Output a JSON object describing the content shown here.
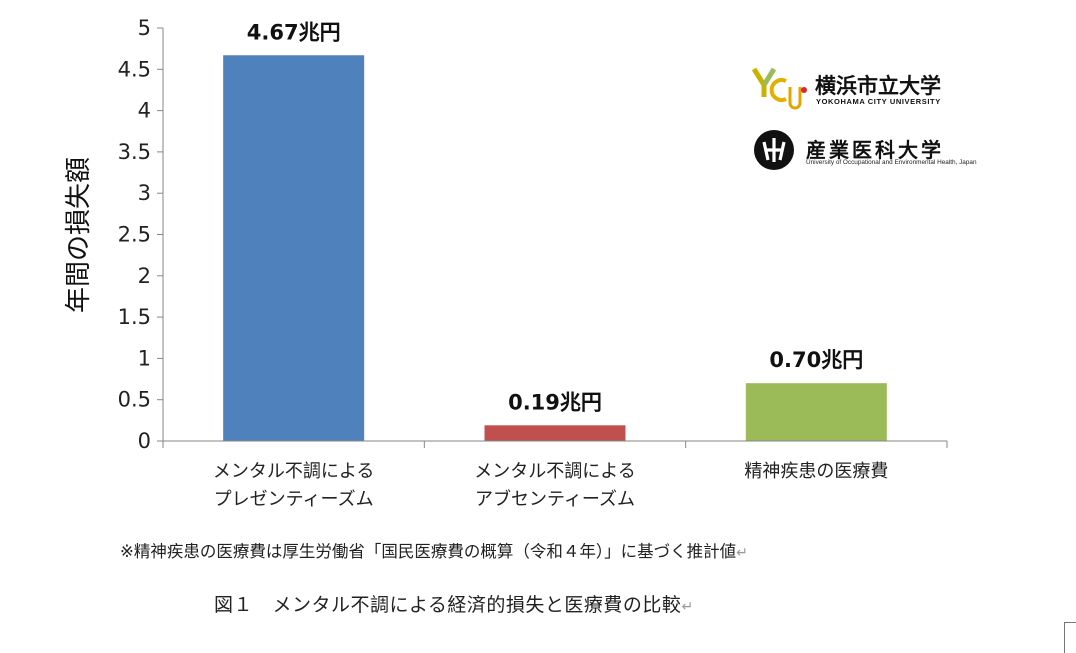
{
  "chart_data": {
    "type": "bar",
    "ylabel": "年間の損失額",
    "ylim": [
      0,
      5
    ],
    "yticks": [
      "0",
      "0.5",
      "1",
      "1.5",
      "2",
      "2.5",
      "3",
      "3.5",
      "4",
      "4.5",
      "5"
    ],
    "categories": [
      [
        "メンタル不調による",
        "プレゼンティーズム"
      ],
      [
        "メンタル不調による",
        "アブセンティーズム"
      ],
      [
        "精神疾患の医療費"
      ]
    ],
    "values": [
      4.67,
      0.19,
      0.7
    ],
    "data_labels": [
      "4.67兆円",
      "0.19兆円",
      "0.70兆円"
    ],
    "colors": [
      "#4f81bd",
      "#c0504d",
      "#9bbb59"
    ],
    "grid": false
  },
  "logos": {
    "ycu_name": "横浜市立大学",
    "ycu_english": "YOKOHAMA CITY UNIVERSITY",
    "uoeh_name": "産業医科大学",
    "uoeh_english": "University of Occupational and Environmental Health, Japan"
  },
  "note": "※精神疾患の医療費は厚生労働省「国民医療費の概算（令和４年）」に基づく推計値",
  "caption": "図１　メンタル不調による経済的損失と医療費の比較",
  "return_mark": "↵"
}
